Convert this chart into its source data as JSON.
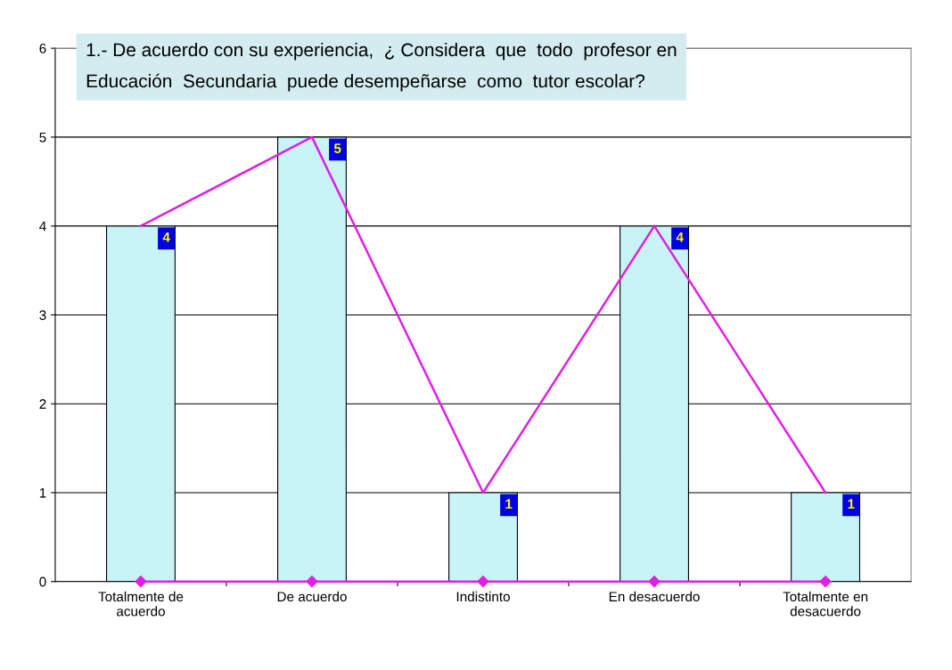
{
  "chart_data": {
    "type": "bar",
    "title": "1.- De acuerdo con su experiencia,  ¿ Considera  que  todo  profesor en\nEducación  Secundaria  puede desempeñarse  como  tutor escolar?",
    "categories": [
      "Totalmente de\nacuerdo",
      "De acuerdo",
      "Indistinto",
      "En desacuerdo",
      "Totalmente en\ndesacuerdo"
    ],
    "series": [
      {
        "color": "#c8f4f8",
        "values": [
          4,
          5,
          1,
          4,
          1
        ],
        "value_labels": [
          "4",
          "5",
          "1",
          "4",
          "1"
        ]
      },
      {
        "type": "line",
        "color": "#e020e0",
        "values": [
          4,
          5,
          1,
          4,
          1
        ],
        "marker": "none"
      },
      {
        "type": "line",
        "color": "#e020e0",
        "values": [
          0,
          0,
          0,
          0,
          0
        ],
        "marker": "diamond"
      }
    ],
    "ylim": [
      0,
      6
    ],
    "yticks": [
      0,
      1,
      2,
      3,
      4,
      5,
      6
    ],
    "grid": "y"
  }
}
